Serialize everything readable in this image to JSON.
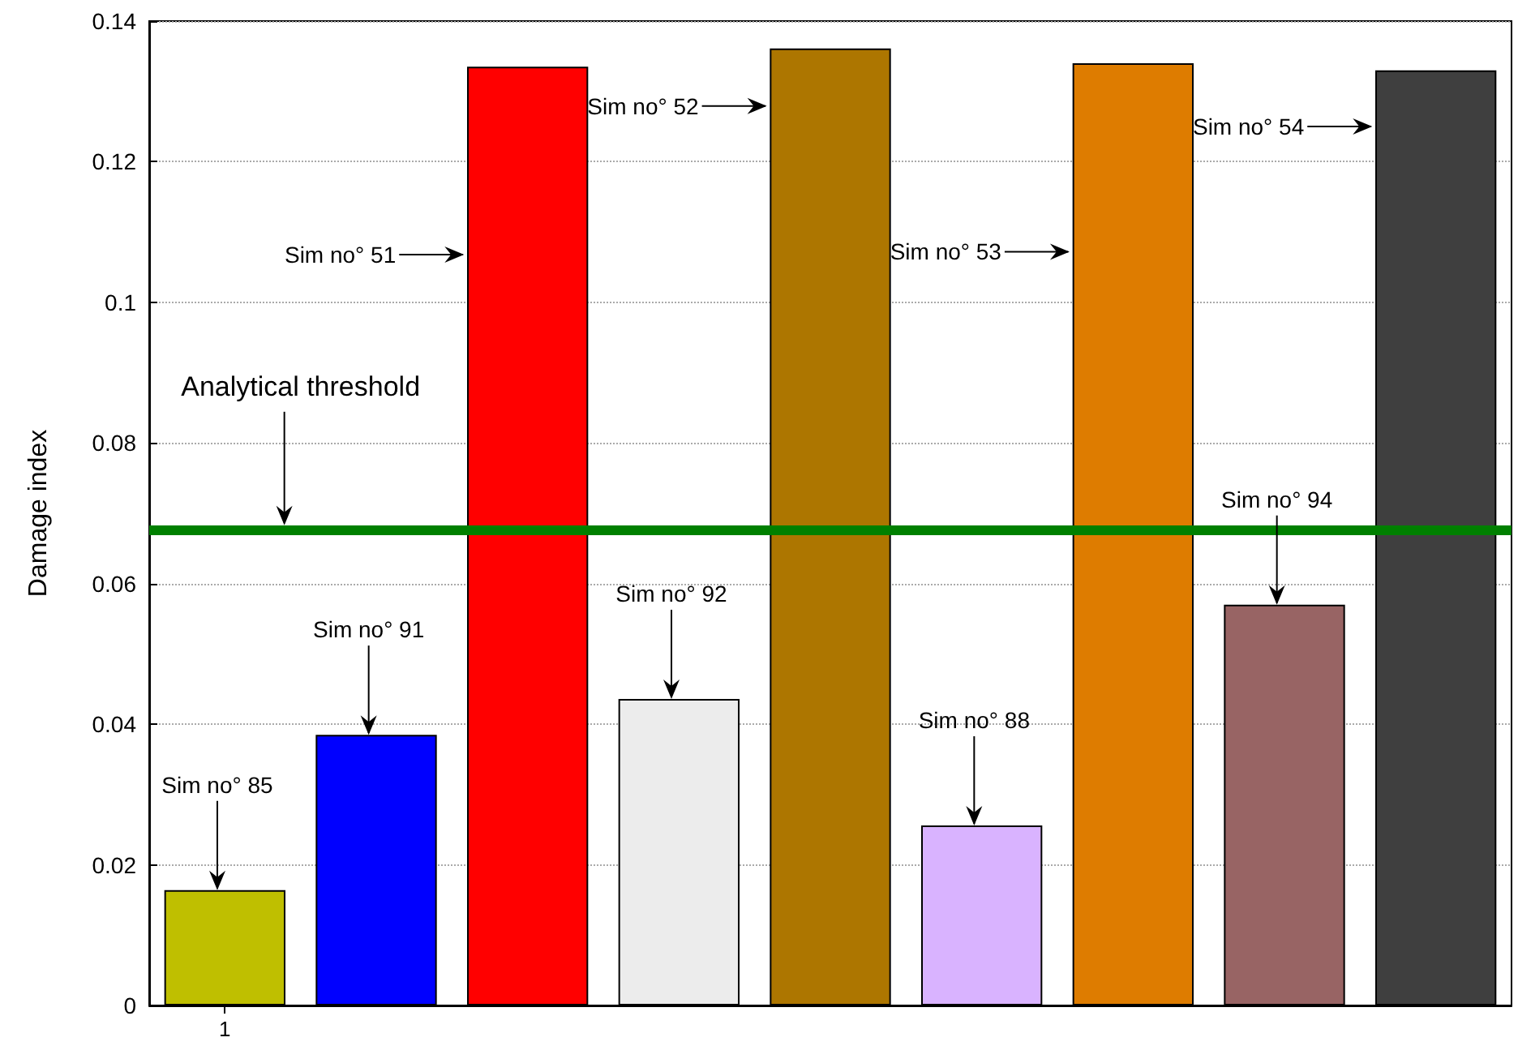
{
  "chart_data": {
    "type": "bar",
    "ylabel": "Damage index",
    "categories": [
      "1",
      null,
      null,
      null,
      null,
      null,
      null,
      null,
      null
    ],
    "values": [
      0.0164,
      0.0385,
      0.1335,
      0.0436,
      0.1361,
      0.0256,
      0.134,
      0.057,
      0.133
    ],
    "colors": [
      "#bfbf00",
      "#0000ff",
      "#ff0000",
      "#ececec",
      "#ad7600",
      "#d9b3ff",
      "#de7c00",
      "#986464",
      "#3f3f3f"
    ],
    "ylim": [
      0,
      0.14
    ],
    "yticks": [
      0,
      0.02,
      0.04,
      0.06,
      0.08,
      0.1,
      0.12,
      0.14
    ],
    "grid": "y",
    "ref_lines": [
      {
        "axis": "y",
        "value": 0.0676,
        "label": "Analytical threshold",
        "color": "#008000"
      }
    ],
    "annotations": [
      "Sim no° 85",
      "Sim no° 91",
      "Sim no° 51",
      "Sim no° 92",
      "Sim no° 52",
      "Sim no° 88",
      "Sim no° 53",
      "Sim no° 94",
      "Sim no° 54"
    ]
  }
}
